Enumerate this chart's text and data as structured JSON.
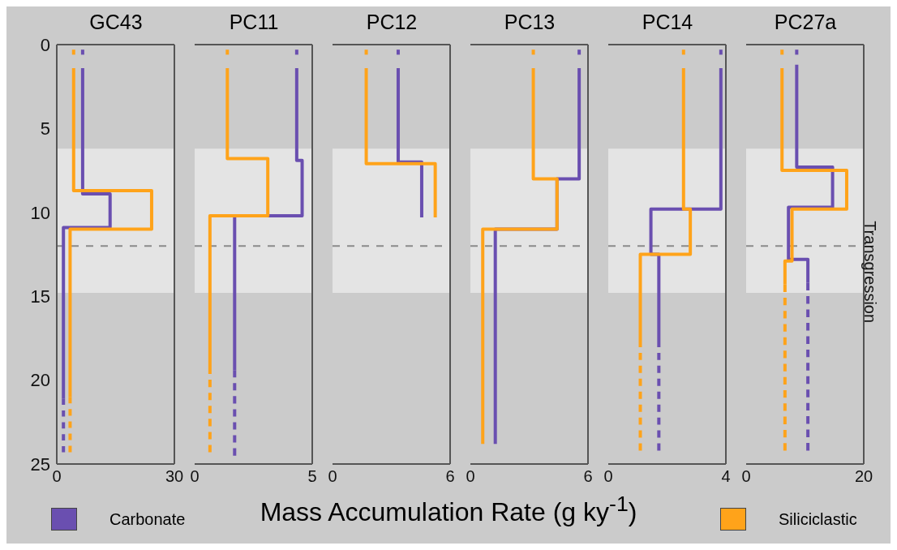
{
  "chart_data": [
    {
      "type": "line",
      "title": "GC43",
      "xlabel": "Mass Accumulation Rate (g ky$^{-1}$)",
      "legend": "bottom",
      "xlim": [
        0,
        30
      ],
      "xticks": [
        0,
        30
      ],
      "ylim": [
        25,
        0
      ],
      "yticks": [
        0,
        5,
        10,
        15,
        20,
        25
      ],
      "bands": [
        {
          "axis": "y",
          "from": 6.2,
          "to": 14.8,
          "color": "#e4e4e4"
        }
      ],
      "ref_lines": [
        {
          "axis": "y",
          "value": 12,
          "color": "#8a8a8a",
          "line_style": "dashed"
        }
      ],
      "series": [
        {
          "name": "Carbonate",
          "color": "#6a4fb0",
          "x": [
            6.6,
            6.6,
            13.6,
            13.6,
            1.7,
            1.7
          ],
          "values": [
            1.4,
            8.9,
            8.9,
            10.9,
            10.9,
            21.1
          ]
        },
        {
          "color": "#6a4fb0",
          "line_style": "dashed",
          "x": [
            1.7,
            1.7
          ],
          "values": [
            21.1,
            24.3
          ]
        },
        {
          "color": "#6a4fb0",
          "x": [
            6.6,
            6.6
          ],
          "values": [
            0.3,
            0.6
          ]
        },
        {
          "name": "Siliciclastic",
          "color": "#ffa31a",
          "x": [
            4.3,
            4.3,
            24.2,
            24.2,
            3.4,
            3.4
          ],
          "values": [
            1.4,
            8.7,
            8.7,
            11.0,
            11.0,
            21.0
          ]
        },
        {
          "color": "#ffa31a",
          "line_style": "dashed",
          "x": [
            3.4,
            3.4
          ],
          "values": [
            21.0,
            24.3
          ]
        },
        {
          "color": "#ffa31a",
          "x": [
            4.3,
            4.3
          ],
          "values": [
            0.3,
            0.6
          ]
        }
      ]
    },
    {
      "type": "line",
      "title": "PC11",
      "tick_labels": "x",
      "xlim": [
        0,
        5
      ],
      "xticks": [
        0,
        5
      ],
      "ylim": [
        25,
        0
      ],
      "yticks": [
        0,
        5,
        10,
        15,
        20,
        25
      ],
      "bands": [
        {
          "axis": "y",
          "from": 6.2,
          "to": 14.8,
          "color": "#e4e4e4"
        }
      ],
      "ref_lines": [
        {
          "axis": "y",
          "value": 12,
          "color": "#8a8a8a",
          "line_style": "dashed"
        }
      ],
      "series": [
        {
          "color": "#6a4fb0",
          "x": [
            4.34,
            4.34,
            4.57,
            4.57,
            1.7,
            1.7
          ],
          "values": [
            1.4,
            6.9,
            6.9,
            10.2,
            10.2,
            19.4
          ]
        },
        {
          "color": "#6a4fb0",
          "line_style": "dashed",
          "x": [
            1.7,
            1.7
          ],
          "values": [
            19.4,
            24.5
          ]
        },
        {
          "color": "#6a4fb0",
          "x": [
            4.34,
            4.34
          ],
          "values": [
            0.3,
            0.6
          ]
        },
        {
          "color": "#ffa31a",
          "x": [
            1.39,
            1.39,
            3.11,
            3.11,
            0.65,
            0.65
          ],
          "values": [
            1.4,
            6.8,
            6.8,
            10.2,
            10.2,
            19.2
          ]
        },
        {
          "color": "#ffa31a",
          "line_style": "dashed",
          "x": [
            0.65,
            0.65
          ],
          "values": [
            19.2,
            24.3
          ]
        },
        {
          "color": "#ffa31a",
          "x": [
            1.39,
            1.39
          ],
          "values": [
            0.3,
            0.6
          ]
        }
      ]
    },
    {
      "type": "line",
      "title": "PC12",
      "tick_labels": "x",
      "xlim": [
        0,
        6
      ],
      "xticks": [
        0,
        6
      ],
      "ylim": [
        25,
        0
      ],
      "yticks": [
        0,
        5,
        10,
        15,
        20,
        25
      ],
      "bands": [
        {
          "axis": "y",
          "from": 6.2,
          "to": 14.8,
          "color": "#e4e4e4"
        }
      ],
      "ref_lines": [
        {
          "axis": "y",
          "value": 12,
          "color": "#8a8a8a",
          "line_style": "dashed"
        }
      ],
      "series": [
        {
          "color": "#6a4fb0",
          "x": [
            3.35,
            3.35,
            4.55,
            4.55
          ],
          "values": [
            1.4,
            7.0,
            7.0,
            10.3
          ]
        },
        {
          "color": "#6a4fb0",
          "x": [
            3.35,
            3.35
          ],
          "values": [
            0.3,
            0.6
          ]
        },
        {
          "color": "#ffa31a",
          "x": [
            1.72,
            1.72,
            5.24,
            5.24
          ],
          "values": [
            1.4,
            7.1,
            7.1,
            10.3
          ]
        },
        {
          "color": "#ffa31a",
          "x": [
            1.72,
            1.72
          ],
          "values": [
            0.3,
            0.6
          ]
        }
      ]
    },
    {
      "type": "line",
      "title": "PC13",
      "tick_labels": "x",
      "xlim": [
        0,
        6
      ],
      "xticks": [
        0,
        6
      ],
      "ylim": [
        25,
        0
      ],
      "yticks": [
        0,
        5,
        10,
        15,
        20,
        25
      ],
      "bands": [
        {
          "axis": "y",
          "from": 6.2,
          "to": 14.8,
          "color": "#e4e4e4"
        }
      ],
      "ref_lines": [
        {
          "axis": "y",
          "value": 12,
          "color": "#8a8a8a",
          "line_style": "dashed"
        }
      ],
      "series": [
        {
          "color": "#6a4fb0",
          "x": [
            5.55,
            5.55,
            4.42,
            4.42,
            1.27,
            1.27
          ],
          "values": [
            1.4,
            8.0,
            8.0,
            11.0,
            11.0,
            23.8
          ]
        },
        {
          "color": "#6a4fb0",
          "x": [
            5.55,
            5.55
          ],
          "values": [
            0.3,
            0.6
          ]
        },
        {
          "color": "#ffa31a",
          "x": [
            3.21,
            3.21,
            4.42,
            4.42,
            0.63,
            0.63
          ],
          "values": [
            1.4,
            8.0,
            8.0,
            11.0,
            11.0,
            23.8
          ]
        },
        {
          "color": "#ffa31a",
          "x": [
            3.21,
            3.21
          ],
          "values": [
            0.3,
            0.6
          ]
        }
      ]
    },
    {
      "type": "line",
      "title": "PC14",
      "tick_labels": "x",
      "xlim": [
        0,
        4
      ],
      "xticks": [
        0,
        4
      ],
      "ylim": [
        25,
        0
      ],
      "yticks": [
        0,
        5,
        10,
        15,
        20,
        25
      ],
      "bands": [
        {
          "axis": "y",
          "from": 6.2,
          "to": 14.8,
          "color": "#e4e4e4"
        }
      ],
      "ref_lines": [
        {
          "axis": "y",
          "value": 12,
          "color": "#8a8a8a",
          "line_style": "dashed"
        }
      ],
      "series": [
        {
          "color": "#6a4fb0",
          "x": [
            3.83,
            3.83,
            1.45,
            1.45,
            1.72,
            1.72
          ],
          "values": [
            1.4,
            9.8,
            9.8,
            12.5,
            12.5,
            17.6
          ]
        },
        {
          "color": "#6a4fb0",
          "line_style": "dashed",
          "x": [
            1.72,
            1.72
          ],
          "values": [
            17.6,
            24.2
          ]
        },
        {
          "color": "#6a4fb0",
          "x": [
            3.83,
            3.83
          ],
          "values": [
            0.3,
            0.6
          ]
        },
        {
          "color": "#ffa31a",
          "x": [
            2.56,
            2.56,
            2.79,
            2.79,
            1.09,
            1.09
          ],
          "values": [
            1.4,
            9.8,
            9.8,
            12.5,
            12.5,
            17.6
          ]
        },
        {
          "color": "#ffa31a",
          "line_style": "dashed",
          "x": [
            1.09,
            1.09
          ],
          "values": [
            17.6,
            24.2
          ]
        },
        {
          "color": "#ffa31a",
          "x": [
            2.56,
            2.56
          ],
          "values": [
            0.3,
            0.6
          ]
        }
      ]
    },
    {
      "type": "line",
      "title": "PC27a",
      "tick_labels": "x",
      "xlim": [
        0,
        20
      ],
      "xticks": [
        0,
        20
      ],
      "ylim": [
        25,
        0
      ],
      "yticks": [
        0,
        5,
        10,
        15,
        20,
        25
      ],
      "bands": [
        {
          "axis": "y",
          "from": 6.2,
          "to": 14.8,
          "color": "#e4e4e4",
          "label": "Transgression"
        }
      ],
      "ref_lines": [
        {
          "axis": "y",
          "value": 12,
          "color": "#8a8a8a",
          "line_style": "dashed"
        }
      ],
      "series": [
        {
          "color": "#6a4fb0",
          "x": [
            8.6,
            8.6,
            14.7,
            14.7,
            7.2,
            7.2,
            10.5,
            10.5
          ],
          "values": [
            1.2,
            7.3,
            7.3,
            9.7,
            9.7,
            12.8,
            12.8,
            14.2
          ]
        },
        {
          "color": "#6a4fb0",
          "line_style": "dashed",
          "x": [
            10.5,
            10.5
          ],
          "values": [
            14.2,
            24.2
          ]
        },
        {
          "color": "#6a4fb0",
          "x": [
            8.6,
            8.6
          ],
          "values": [
            0.3,
            0.6
          ]
        },
        {
          "color": "#ffa31a",
          "x": [
            6.1,
            6.1,
            17.1,
            17.1,
            7.8,
            7.8,
            6.6,
            6.6
          ],
          "values": [
            1.4,
            7.5,
            7.5,
            9.8,
            9.8,
            12.9,
            12.9,
            14.3
          ]
        },
        {
          "color": "#ffa31a",
          "line_style": "dashed",
          "x": [
            6.6,
            6.6
          ],
          "values": [
            14.3,
            24.2
          ]
        },
        {
          "color": "#ffa31a",
          "x": [
            6.1,
            6.1
          ],
          "values": [
            0.3,
            0.6
          ]
        }
      ]
    }
  ]
}
